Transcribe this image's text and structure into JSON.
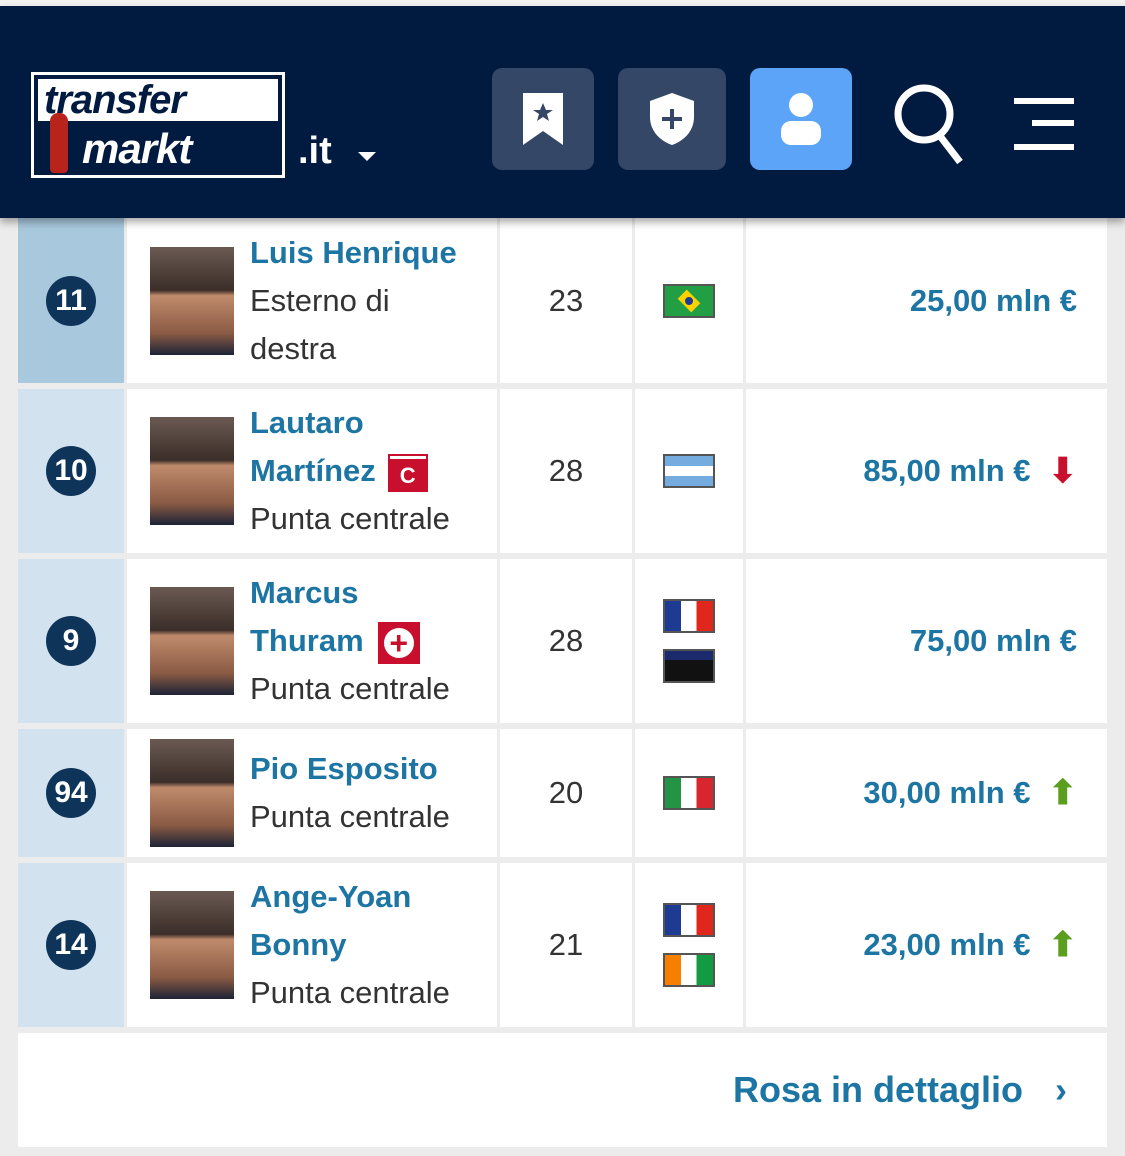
{
  "header": {
    "logo_line1": "transfer",
    "logo_line2": "markt",
    "domain": ".it",
    "buttons": [
      {
        "icon": "bookmark-star-icon"
      },
      {
        "icon": "shield-plus-icon"
      },
      {
        "icon": "user-icon",
        "active": true
      },
      {
        "icon": "search-icon"
      },
      {
        "icon": "menu-icon"
      }
    ],
    "active_color": "#5ba4f8",
    "bg_color": "#001a40"
  },
  "players": [
    {
      "number": "11",
      "name_lines": [
        "Luis Henrique"
      ],
      "position_lines": [
        "Esterno di",
        "destra"
      ],
      "age": "23",
      "flags": [
        "brazil"
      ],
      "value": "25,00 mln €",
      "trend": "",
      "badge": "",
      "selected": true
    },
    {
      "number": "10",
      "name_lines": [
        "Lautaro",
        "Martínez"
      ],
      "position_lines": [
        "Punta centrale"
      ],
      "age": "28",
      "flags": [
        "argentina"
      ],
      "value": "85,00 mln €",
      "trend": "down",
      "badge": "captain",
      "captain_letter": "C"
    },
    {
      "number": "9",
      "name_lines": [
        "Marcus",
        "Thuram"
      ],
      "position_lines": [
        "Punta centrale"
      ],
      "age": "28",
      "flags": [
        "france",
        "guadeloupe"
      ],
      "value": "75,00 mln €",
      "trend": "",
      "badge": "injury"
    },
    {
      "number": "94",
      "name_lines": [
        "Pio Esposito"
      ],
      "position_lines": [
        "Punta centrale"
      ],
      "age": "20",
      "flags": [
        "italy"
      ],
      "value": "30,00 mln €",
      "trend": "up",
      "badge": ""
    },
    {
      "number": "14",
      "name_lines": [
        "Ange-Yoan",
        "Bonny"
      ],
      "position_lines": [
        "Punta centrale"
      ],
      "age": "21",
      "flags": [
        "france",
        "cote-divoire"
      ],
      "value": "23,00 mln €",
      "trend": "up",
      "badge": ""
    }
  ],
  "footer": {
    "link": "Rosa in dettaglio",
    "chevron": "›"
  }
}
